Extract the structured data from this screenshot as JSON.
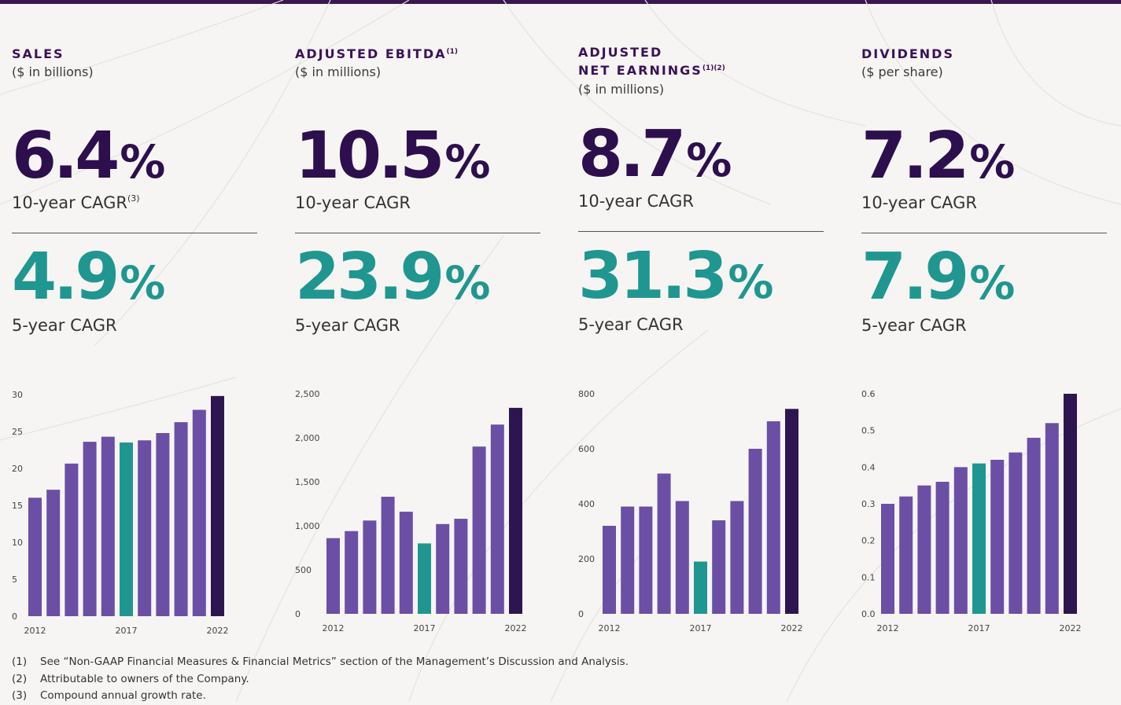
{
  "colors": {
    "bar": "#6b4fa5",
    "highlight_2017": "#1f9790",
    "latest_2022": "#2d1650",
    "headline_10yr": "#2d0f4e",
    "headline_5yr": "#1f9790",
    "title": "#3b1259"
  },
  "panels": [
    {
      "title": "SALES",
      "title_note": "",
      "unit": "($ in billions)",
      "ten_year_value": "6.4",
      "ten_year_label": "10-year CAGR",
      "ten_year_note": "(3)",
      "five_year_value": "4.9",
      "five_year_label": "5-year CAGR",
      "pct_symbol": "%"
    },
    {
      "title": "ADJUSTED EBITDA",
      "title_note": "(1)",
      "unit": "($ in millions)",
      "ten_year_value": "10.5",
      "ten_year_label": "10-year CAGR",
      "ten_year_note": "",
      "five_year_value": "23.9",
      "five_year_label": "5-year CAGR",
      "pct_symbol": "%"
    },
    {
      "title": "ADJUSTED\nNET EARNINGS",
      "title_note": "(1)(2)",
      "unit": "($ in millions)",
      "ten_year_value": "8.7",
      "ten_year_label": "10-year CAGR",
      "ten_year_note": "",
      "five_year_value": "31.3",
      "five_year_label": "5-year CAGR",
      "pct_symbol": "%"
    },
    {
      "title": "DIVIDENDS",
      "title_note": "",
      "unit": "($ per share)",
      "ten_year_value": "7.2",
      "ten_year_label": "10-year CAGR",
      "ten_year_note": "",
      "five_year_value": "7.9",
      "five_year_label": "5-year CAGR",
      "pct_symbol": "%"
    }
  ],
  "chart_data": [
    {
      "type": "bar",
      "title": "SALES",
      "categories": [
        "2012",
        "2013",
        "2014",
        "2015",
        "2016",
        "2017",
        "2018",
        "2019",
        "2020",
        "2021",
        "2022"
      ],
      "values": [
        16.3,
        17.4,
        21.0,
        24.0,
        24.7,
        23.9,
        24.2,
        25.2,
        26.7,
        28.4,
        30.3
      ],
      "x_tick_labels": [
        "2012",
        "2017",
        "2022"
      ],
      "y_ticks": [
        "0",
        "5",
        "10",
        "15",
        "20",
        "25",
        "30"
      ],
      "ylim": [
        0,
        30.5
      ],
      "highlight_indices": {
        "2017": 5,
        "2022": 10
      },
      "grid": false
    },
    {
      "type": "bar",
      "title": "ADJUSTED EBITDA",
      "categories": [
        "2012",
        "2013",
        "2014",
        "2015",
        "2016",
        "2017",
        "2018",
        "2019",
        "2020",
        "2021",
        "2022"
      ],
      "values": [
        860,
        940,
        1060,
        1330,
        1160,
        800,
        1020,
        1080,
        1900,
        2150,
        2340
      ],
      "x_tick_labels": [
        "2012",
        "2017",
        "2022"
      ],
      "y_ticks": [
        "0",
        "500",
        "1,000",
        "1,500",
        "2,000",
        "2,500"
      ],
      "ylim": [
        0,
        2500
      ],
      "highlight_indices": {
        "2017": 5,
        "2022": 10
      },
      "grid": false
    },
    {
      "type": "bar",
      "title": "ADJUSTED NET EARNINGS",
      "categories": [
        "2012",
        "2013",
        "2014",
        "2015",
        "2016",
        "2017",
        "2018",
        "2019",
        "2020",
        "2021",
        "2022"
      ],
      "values": [
        320,
        390,
        390,
        510,
        410,
        190,
        340,
        410,
        600,
        700,
        745
      ],
      "x_tick_labels": [
        "2012",
        "2017",
        "2022"
      ],
      "y_ticks": [
        "0",
        "200",
        "400",
        "600",
        "800"
      ],
      "ylim": [
        0,
        800
      ],
      "highlight_indices": {
        "2017": 5,
        "2022": 10
      },
      "grid": false
    },
    {
      "type": "bar",
      "title": "DIVIDENDS",
      "categories": [
        "2012",
        "2013",
        "2014",
        "2015",
        "2016",
        "2017",
        "2018",
        "2019",
        "2020",
        "2021",
        "2022"
      ],
      "values": [
        0.3,
        0.32,
        0.35,
        0.36,
        0.4,
        0.41,
        0.42,
        0.44,
        0.48,
        0.52,
        0.6
      ],
      "x_tick_labels": [
        "2012",
        "2017",
        "2022"
      ],
      "y_ticks": [
        "0.0",
        "0.1",
        "0.2",
        "0.3",
        "0.4",
        "0.5",
        "0.6"
      ],
      "ylim": [
        0,
        0.6
      ],
      "highlight_indices": {
        "2017": 5,
        "2022": 10
      },
      "grid": false
    }
  ],
  "footnotes": [
    {
      "num": "(1)",
      "text": "See “Non-GAAP Financial Measures & Financial Metrics” section of the Management’s Discussion and Analysis."
    },
    {
      "num": "(2)",
      "text": "Attributable to owners of the Company."
    },
    {
      "num": "(3)",
      "text": "Compound annual growth rate."
    }
  ]
}
